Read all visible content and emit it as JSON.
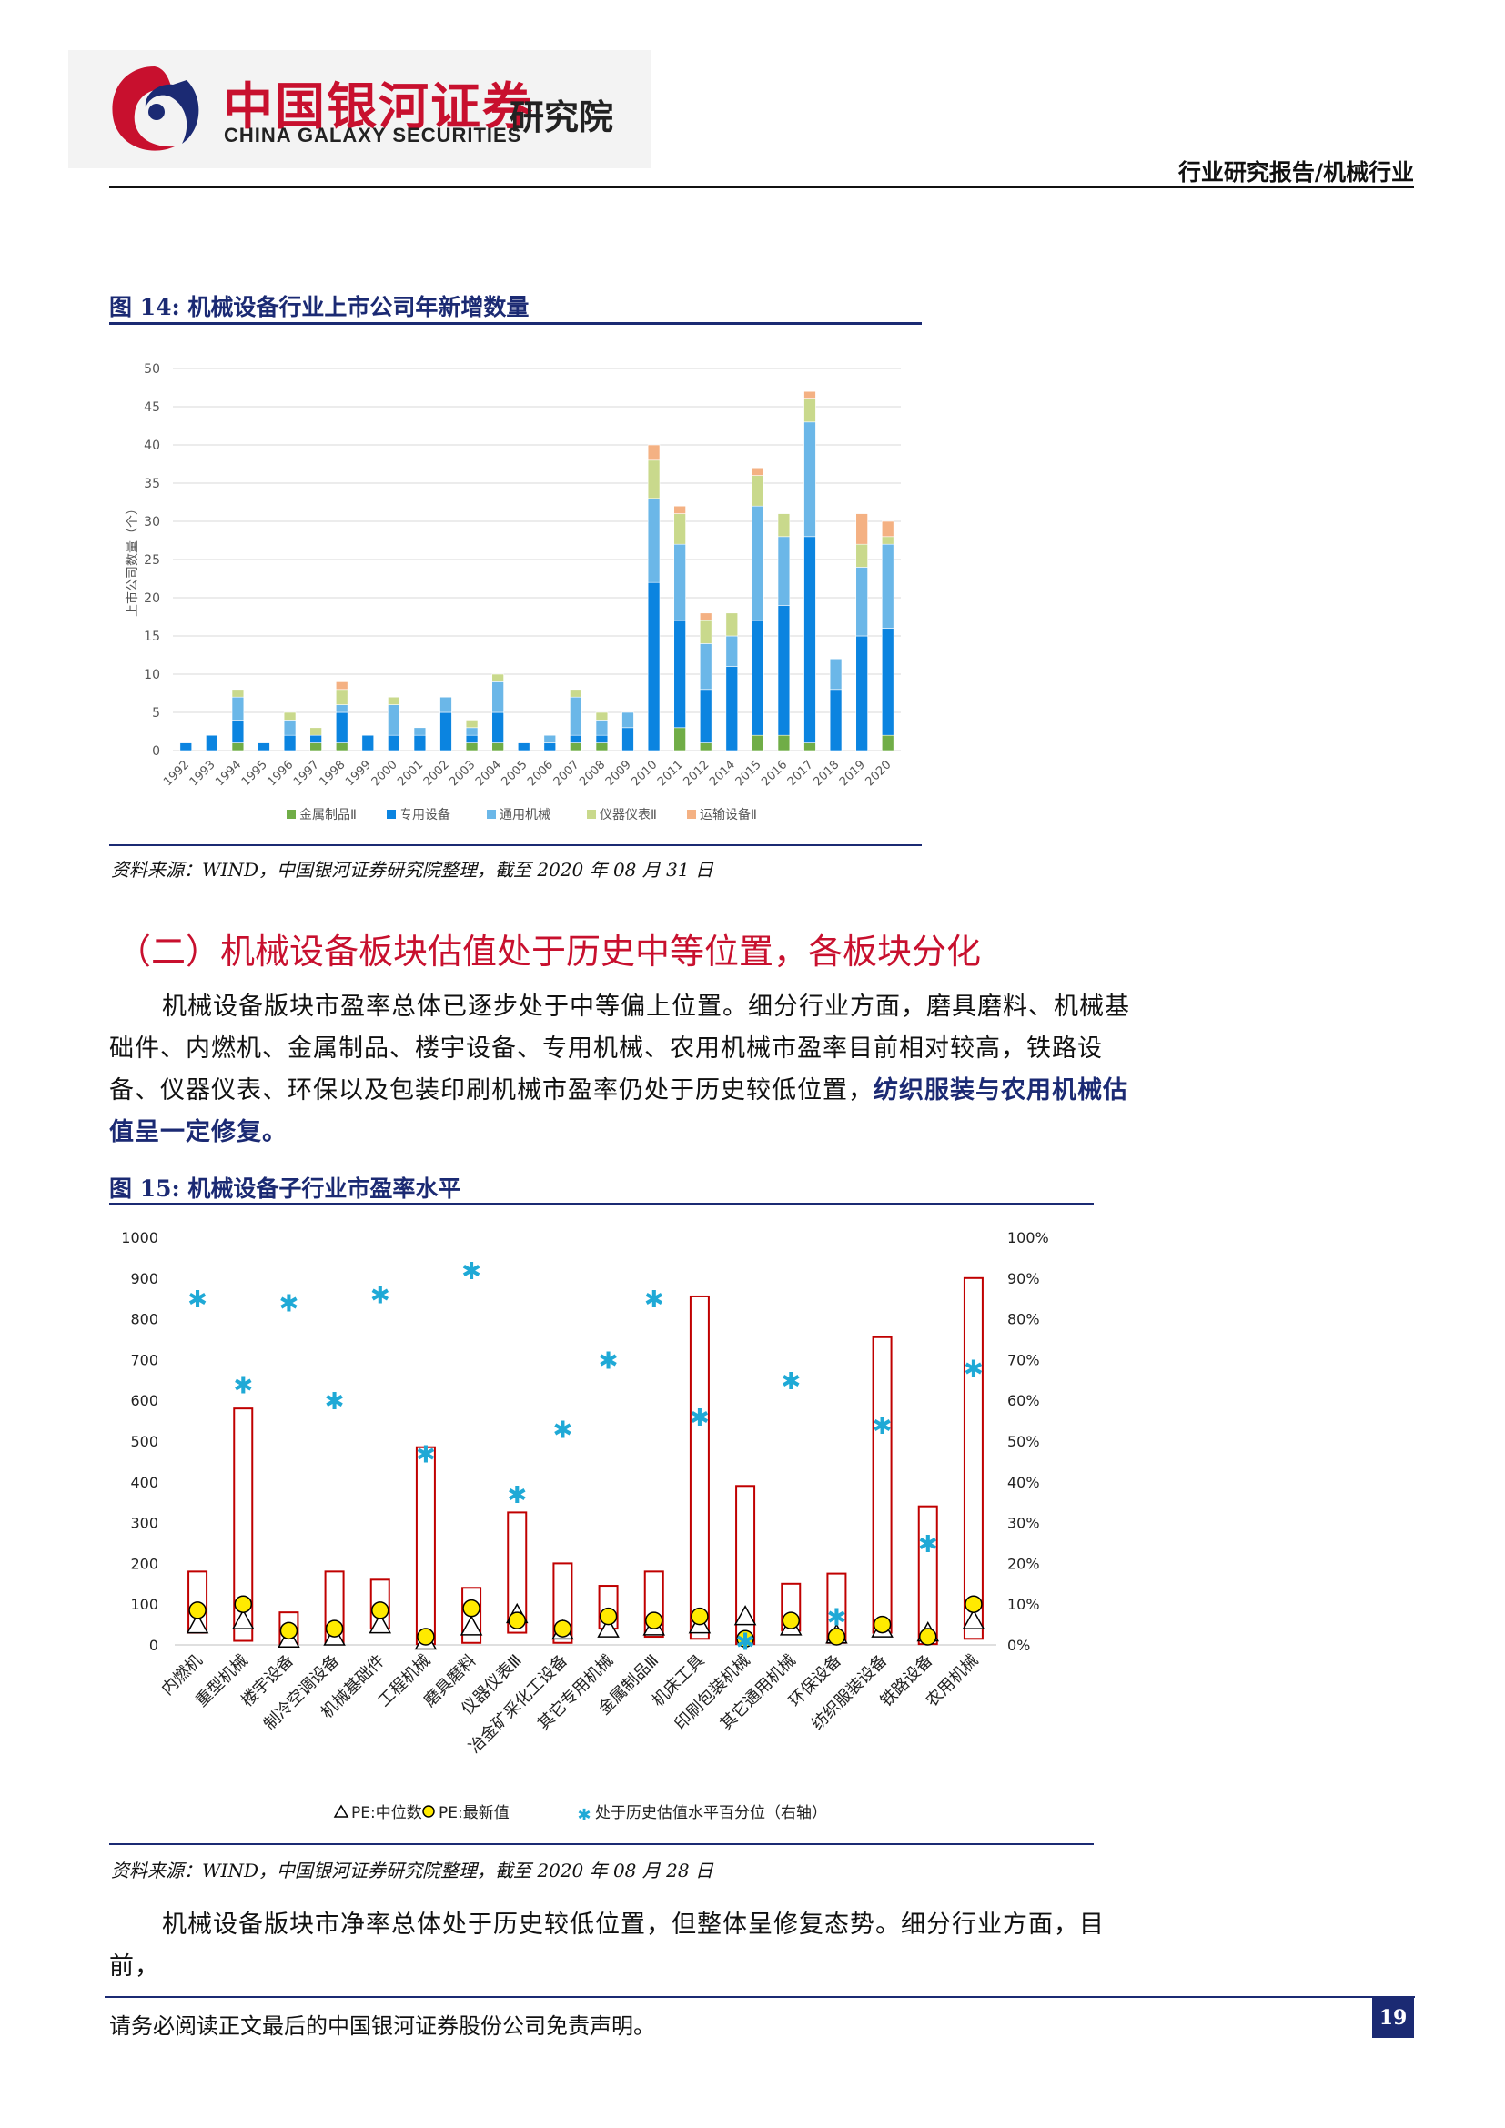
{
  "header": {
    "logo_cn": "中国银河证券",
    "logo_institute": "研究院",
    "logo_en": "CHINA GALAXY SECURITIES",
    "report_type": "行业研究报告/机械行业"
  },
  "figure14": {
    "title": "图 14:  机械设备行业上市公司年新增数量",
    "source": "资料来源：WIND，中国银河证券研究院整理，截至 2020 年 08 月 31 日"
  },
  "section": {
    "title": "（二）机械设备板块估值处于历史中等位置，各板块分化",
    "para1_normal": "机械设备版块市盈率总体已逐步处于中等偏上位置。细分行业方面，磨具磨料、机械基础件、内燃机、金属制品、楼宇设备、专用机械、农用机械市盈率目前相对较高，铁路设备、仪器仪表、环保以及包装印刷机械市盈率仍处于历史较低位置，",
    "para1_bold": "纺织服装与农用机械估值呈一定修复。"
  },
  "figure15": {
    "title": "图 15:  机械设备子行业市盈率水平",
    "source": "资料来源：WIND，中国银河证券研究院整理，截至 2020 年 08 月 28 日"
  },
  "para2": "机械设备版块市净率总体处于历史较低位置，但整体呈修复态势。细分行业方面，目前，",
  "footer": {
    "disclaimer": "请务必阅读正文最后的中国银河证券股份公司免责声明。",
    "page": "19"
  },
  "chart_data": [
    {
      "type": "bar",
      "stacked": true,
      "categories": [
        "1992",
        "1993",
        "1994",
        "1995",
        "1996",
        "1997",
        "1998",
        "1999",
        "2000",
        "2001",
        "2002",
        "2003",
        "2004",
        "2005",
        "2006",
        "2007",
        "2008",
        "2009",
        "2010",
        "2011",
        "2012",
        "2014",
        "2015",
        "2016",
        "2017",
        "2018",
        "2019",
        "2020"
      ],
      "series": [
        {
          "name": "金属制品Ⅱ",
          "color": "#70ad47",
          "values": [
            0,
            0,
            1,
            0,
            0,
            1,
            1,
            0,
            0,
            0,
            0,
            1,
            1,
            0,
            0,
            1,
            1,
            0,
            0,
            3,
            1,
            0,
            2,
            2,
            1,
            0,
            0,
            2
          ]
        },
        {
          "name": "专用设备",
          "color": "#0b84e0",
          "values": [
            1,
            2,
            3,
            1,
            2,
            1,
            4,
            2,
            2,
            2,
            5,
            1,
            4,
            1,
            1,
            1,
            1,
            3,
            22,
            14,
            7,
            11,
            15,
            17,
            27,
            8,
            15,
            14
          ]
        },
        {
          "name": "通用机械",
          "color": "#6bb7e8",
          "values": [
            0,
            0,
            3,
            0,
            2,
            0,
            1,
            0,
            4,
            1,
            2,
            1,
            4,
            0,
            1,
            5,
            2,
            2,
            11,
            10,
            6,
            4,
            15,
            9,
            15,
            4,
            9,
            11
          ]
        },
        {
          "name": "仪器仪表Ⅱ",
          "color": "#c9d98c",
          "values": [
            0,
            0,
            1,
            0,
            1,
            1,
            2,
            0,
            1,
            0,
            0,
            1,
            1,
            0,
            0,
            1,
            1,
            0,
            5,
            4,
            3,
            3,
            4,
            3,
            3,
            0,
            3,
            1
          ]
        },
        {
          "name": "运输设备Ⅱ",
          "color": "#f4b183",
          "values": [
            0,
            0,
            0,
            0,
            0,
            0,
            1,
            0,
            0,
            0,
            0,
            0,
            0,
            0,
            0,
            0,
            0,
            0,
            2,
            1,
            1,
            0,
            1,
            0,
            1,
            0,
            4,
            2
          ]
        }
      ],
      "ylabel": "上市公司数量（个）",
      "ylim": [
        0,
        50
      ],
      "yticks": [
        0,
        5,
        10,
        15,
        20,
        25,
        30,
        35,
        40,
        45,
        50
      ],
      "grid": true,
      "legend": "bottom"
    },
    {
      "type": "bar",
      "categories": [
        "内燃机",
        "重型机械",
        "楼宇设备",
        "制冷空调设备",
        "机械基础件",
        "工程机械",
        "磨具磨料",
        "仪器仪表Ⅲ",
        "冶金矿采化工设备",
        "其它专用机械",
        "金属制品Ⅲ",
        "机床工具",
        "印刷包装机械",
        "其它通用机械",
        "环保设备",
        "纺织服装设备",
        "铁路设备",
        "农用机械"
      ],
      "range_high": [
        180,
        580,
        80,
        180,
        160,
        485,
        140,
        325,
        200,
        145,
        180,
        855,
        390,
        150,
        175,
        755,
        340,
        900
      ],
      "range_low": [
        30,
        10,
        2,
        5,
        40,
        2,
        5,
        30,
        5,
        40,
        20,
        15,
        2,
        35,
        5,
        30,
        2,
        15
      ],
      "series": [
        {
          "name": "PE:中位数",
          "marker": "triangle",
          "values": [
            50,
            60,
            15,
            20,
            50,
            10,
            45,
            75,
            35,
            40,
            45,
            50,
            70,
            45,
            25,
            40,
            30,
            60
          ]
        },
        {
          "name": "PE:最新值",
          "marker": "circle",
          "values": [
            85,
            100,
            35,
            40,
            85,
            20,
            90,
            60,
            40,
            70,
            60,
            70,
            15,
            60,
            20,
            50,
            20,
            100
          ]
        },
        {
          "name": "处于历史估值水平百分位（右轴）",
          "marker": "asterisk",
          "axis": "right",
          "values": [
            0.85,
            0.64,
            0.84,
            0.6,
            0.86,
            0.47,
            0.92,
            0.37,
            0.53,
            0.7,
            0.85,
            0.56,
            0.01,
            0.65,
            0.07,
            0.54,
            0.25,
            0.68
          ]
        }
      ],
      "ylim": [
        0,
        1000
      ],
      "yticks": [
        0,
        100,
        200,
        300,
        400,
        500,
        600,
        700,
        800,
        900,
        1000
      ],
      "y2lim": [
        0,
        1
      ],
      "y2ticks": [
        "0%",
        "10%",
        "20%",
        "30%",
        "40%",
        "50%",
        "60%",
        "70%",
        "80%",
        "90%",
        "100%"
      ],
      "grid": false,
      "legend": "bottom"
    }
  ]
}
